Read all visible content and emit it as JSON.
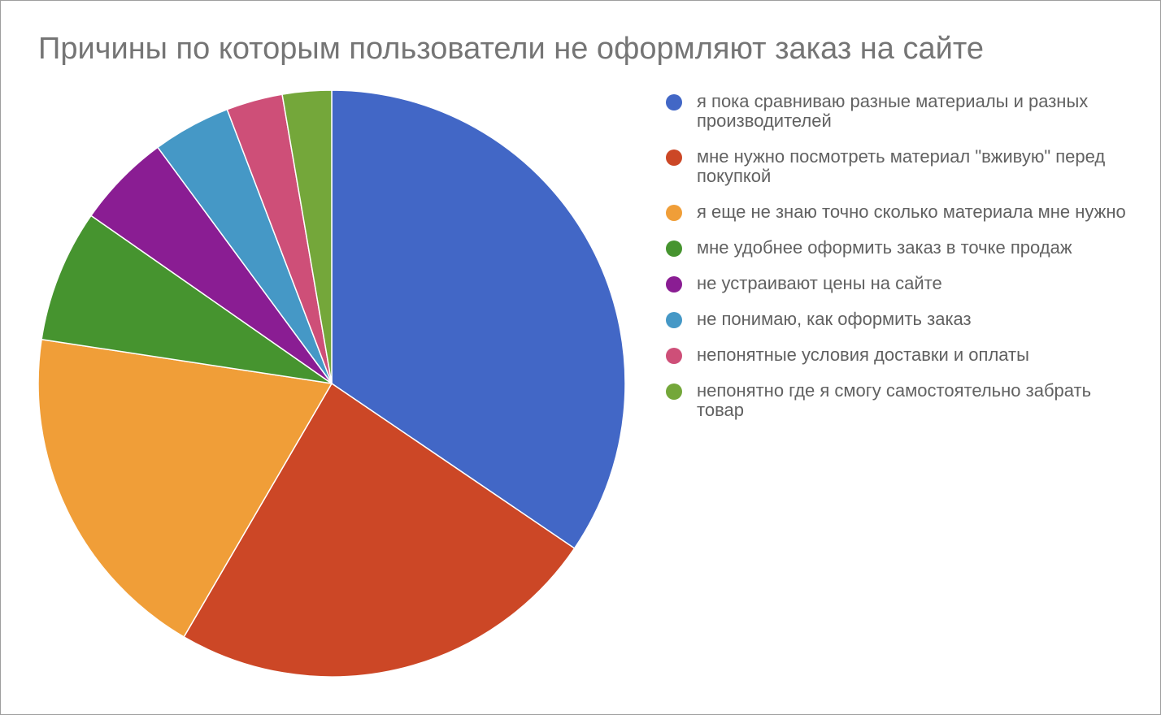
{
  "chart_data": {
    "type": "pie",
    "title": "Причины по которым пользователи не оформляют заказ на сайте",
    "legend_position": "right",
    "slices": [
      {
        "label": "я пока сравниваю разные материалы и разных производителей",
        "value": 34.5,
        "color": "#4267c6"
      },
      {
        "label": "мне нужно посмотреть материал \"вживую\" перед покупкой",
        "value": 23.9,
        "color": "#cc4726"
      },
      {
        "label": "я еще не знаю точно сколько материала мне нужно",
        "value": 19.0,
        "color": "#f09e38"
      },
      {
        "label": "мне удобнее оформить заказ в точке продаж",
        "value": 7.3,
        "color": "#46942f"
      },
      {
        "label": "не устраивают цены на сайте",
        "value": 5.2,
        "color": "#8a1d93"
      },
      {
        "label": "не понимаю, как оформить заказ",
        "value": 4.3,
        "color": "#4598c6"
      },
      {
        "label": "непонятные условия доставки и оплаты",
        "value": 3.1,
        "color": "#ce4f78"
      },
      {
        "label": "непонятно где я смогу самостоятельно забрать товар",
        "value": 2.7,
        "color": "#74a73a"
      }
    ]
  }
}
